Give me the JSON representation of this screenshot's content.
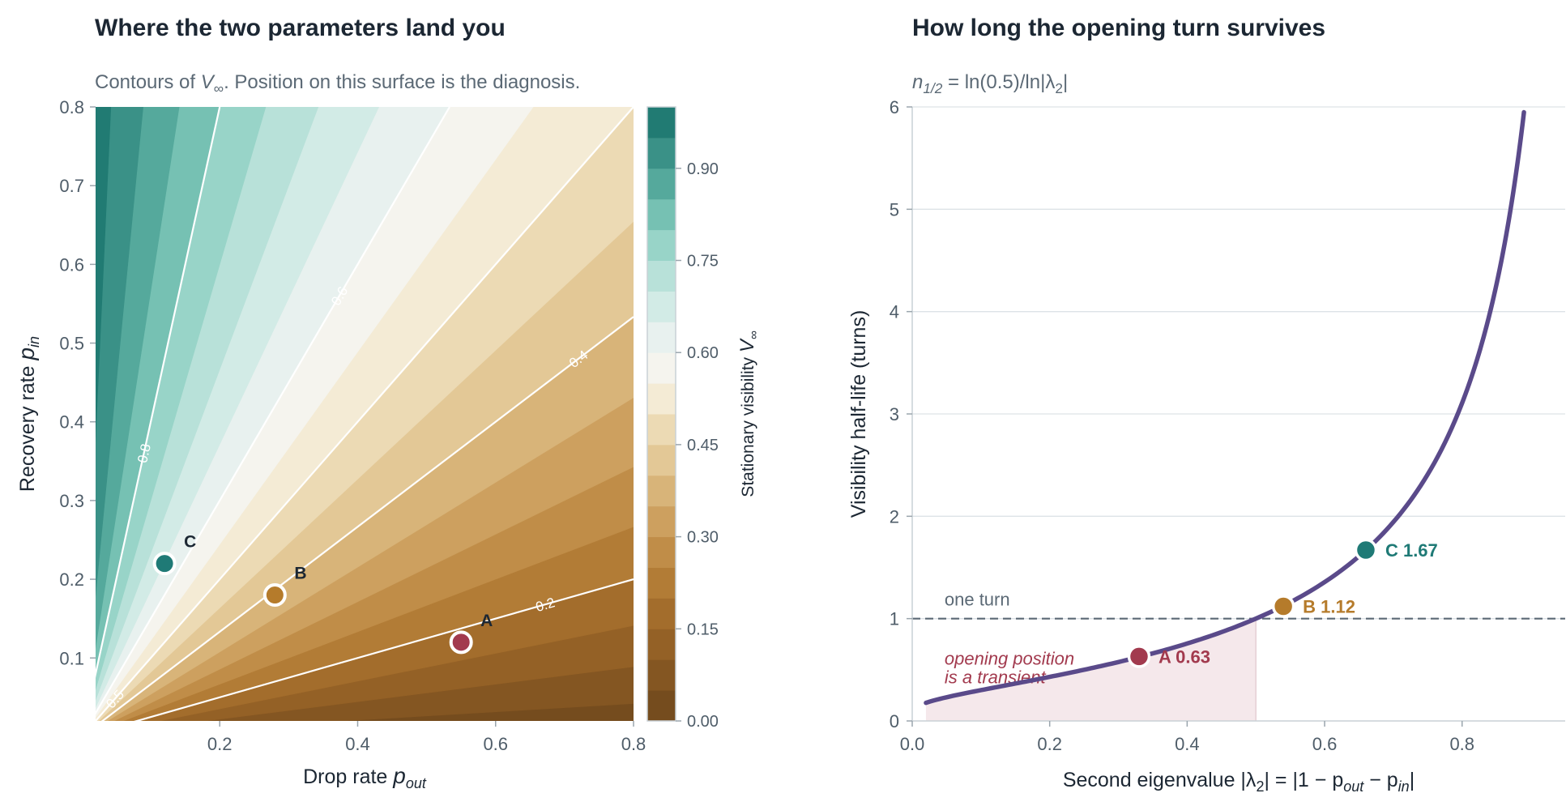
{
  "colors": {
    "contour_dark_teal": "#13544c",
    "contour_mid": "#f5f1e6",
    "contour_dark_brown": "#7d5423",
    "curve": "#5a4a8a",
    "A": "#a23a4e",
    "B": "#b57b2b",
    "C": "#1f7a76",
    "shade": "#f3e4e7"
  },
  "chart_data": [
    {
      "type": "contour",
      "title": "Where the two parameters land you",
      "subtitle": {
        "pre": "Contours of ",
        "symbol": "V",
        "symbol_sub": "∞",
        "post": ". Position on this surface is the diagnosis."
      },
      "formula": "V = p_in / (p_in + p_out)",
      "xlabel": {
        "text": "Drop rate",
        "symbol": "p",
        "symbol_sub": "out"
      },
      "ylabel": {
        "text": "Recovery rate",
        "symbol": "p",
        "symbol_sub": "in"
      },
      "xlim": [
        0.02,
        0.8
      ],
      "ylim": [
        0.02,
        0.8
      ],
      "xticks": [
        0.2,
        0.4,
        0.6,
        0.8
      ],
      "xtick_labels": [
        "0.2",
        "0.4",
        "0.6",
        "0.8"
      ],
      "yticks": [
        0.1,
        0.2,
        0.3,
        0.4,
        0.5,
        0.6,
        0.7,
        0.8
      ],
      "ytick_labels": [
        "0.1",
        "0.2",
        "0.3",
        "0.4",
        "0.5",
        "0.6",
        "0.7",
        "0.8"
      ],
      "levels": [
        0,
        0.05,
        0.1,
        0.15,
        0.2,
        0.25,
        0.3,
        0.35,
        0.4,
        0.45,
        0.5,
        0.55,
        0.6,
        0.65,
        0.7,
        0.75,
        0.8,
        0.85,
        0.9,
        0.95,
        1.0
      ],
      "level_colors": [
        "#754c1e",
        "#845622",
        "#946126",
        "#a36d2c",
        "#b27c36",
        "#c08d48",
        "#cda05f",
        "#d8b479",
        "#e3c896",
        "#ecdab4",
        "#f4ebd5",
        "#f5f4ee",
        "#e8f1ef",
        "#d2ebe6",
        "#b8e1d9",
        "#98d4c8",
        "#76c1b3",
        "#55a99c",
        "#3a9187",
        "#217b73",
        "#13554c"
      ],
      "contour_lines": [
        {
          "value": 0.2,
          "label": "0.2"
        },
        {
          "value": 0.4,
          "label": "0.4"
        },
        {
          "value": 0.5,
          "label": "0.5"
        },
        {
          "value": 0.6,
          "label": "0.6"
        },
        {
          "value": 0.8,
          "label": "0.8"
        }
      ],
      "points": [
        {
          "name": "A",
          "x": 0.55,
          "y": 0.12
        },
        {
          "name": "B",
          "x": 0.28,
          "y": 0.18
        },
        {
          "name": "C",
          "x": 0.12,
          "y": 0.22
        }
      ],
      "colorbar": {
        "label": {
          "text": "Stationary visibility",
          "symbol": "V",
          "symbol_sub": "∞"
        },
        "ticks": [
          0.0,
          0.15,
          0.3,
          0.45,
          0.6,
          0.75,
          0.9
        ],
        "tick_labels": [
          "0.00",
          "0.15",
          "0.30",
          "0.45",
          "0.60",
          "0.75",
          "0.90"
        ]
      }
    },
    {
      "type": "line",
      "title": "How long the opening turn survives",
      "subtitle": {
        "symbol": "n",
        "symbol_sub": "1/2",
        "post": " = ln(0.5)/ln|λ",
        "post_sub": "2",
        "tail": "|"
      },
      "formula": "y = ln(0.5) / ln(x)",
      "xlabel": {
        "pre": "Second eigenvalue  |λ",
        "pre_sub": "2",
        "mid": "| = |1 − p",
        "mid_sub": "out",
        "mid2": " − p",
        "mid2_sub": "in",
        "tail": "|"
      },
      "ylabel": "Visibility half-life (turns)",
      "xlim": [
        0,
        0.95
      ],
      "ylim": [
        0,
        6
      ],
      "xticks": [
        0.0,
        0.2,
        0.4,
        0.6,
        0.8
      ],
      "xtick_labels": [
        "0.0",
        "0.2",
        "0.4",
        "0.6",
        "0.8"
      ],
      "yticks": [
        0,
        1,
        2,
        3,
        4,
        5,
        6
      ],
      "ytick_labels": [
        "0",
        "1",
        "2",
        "3",
        "4",
        "5",
        "6"
      ],
      "grid": "horizontal",
      "curve_x_range": [
        0.02,
        0.89
      ],
      "reference_line": {
        "y": 1,
        "label": "one turn"
      },
      "transient_region": {
        "x": [
          0,
          0.5
        ],
        "label_line1": "opening position",
        "label_line2": "is a transient"
      },
      "points": [
        {
          "name": "A",
          "x": 0.33,
          "y": 0.63,
          "label": "0.63"
        },
        {
          "name": "B",
          "x": 0.54,
          "y": 1.12,
          "label": "1.12"
        },
        {
          "name": "C",
          "x": 0.66,
          "y": 1.67,
          "label": "1.67"
        }
      ]
    }
  ]
}
